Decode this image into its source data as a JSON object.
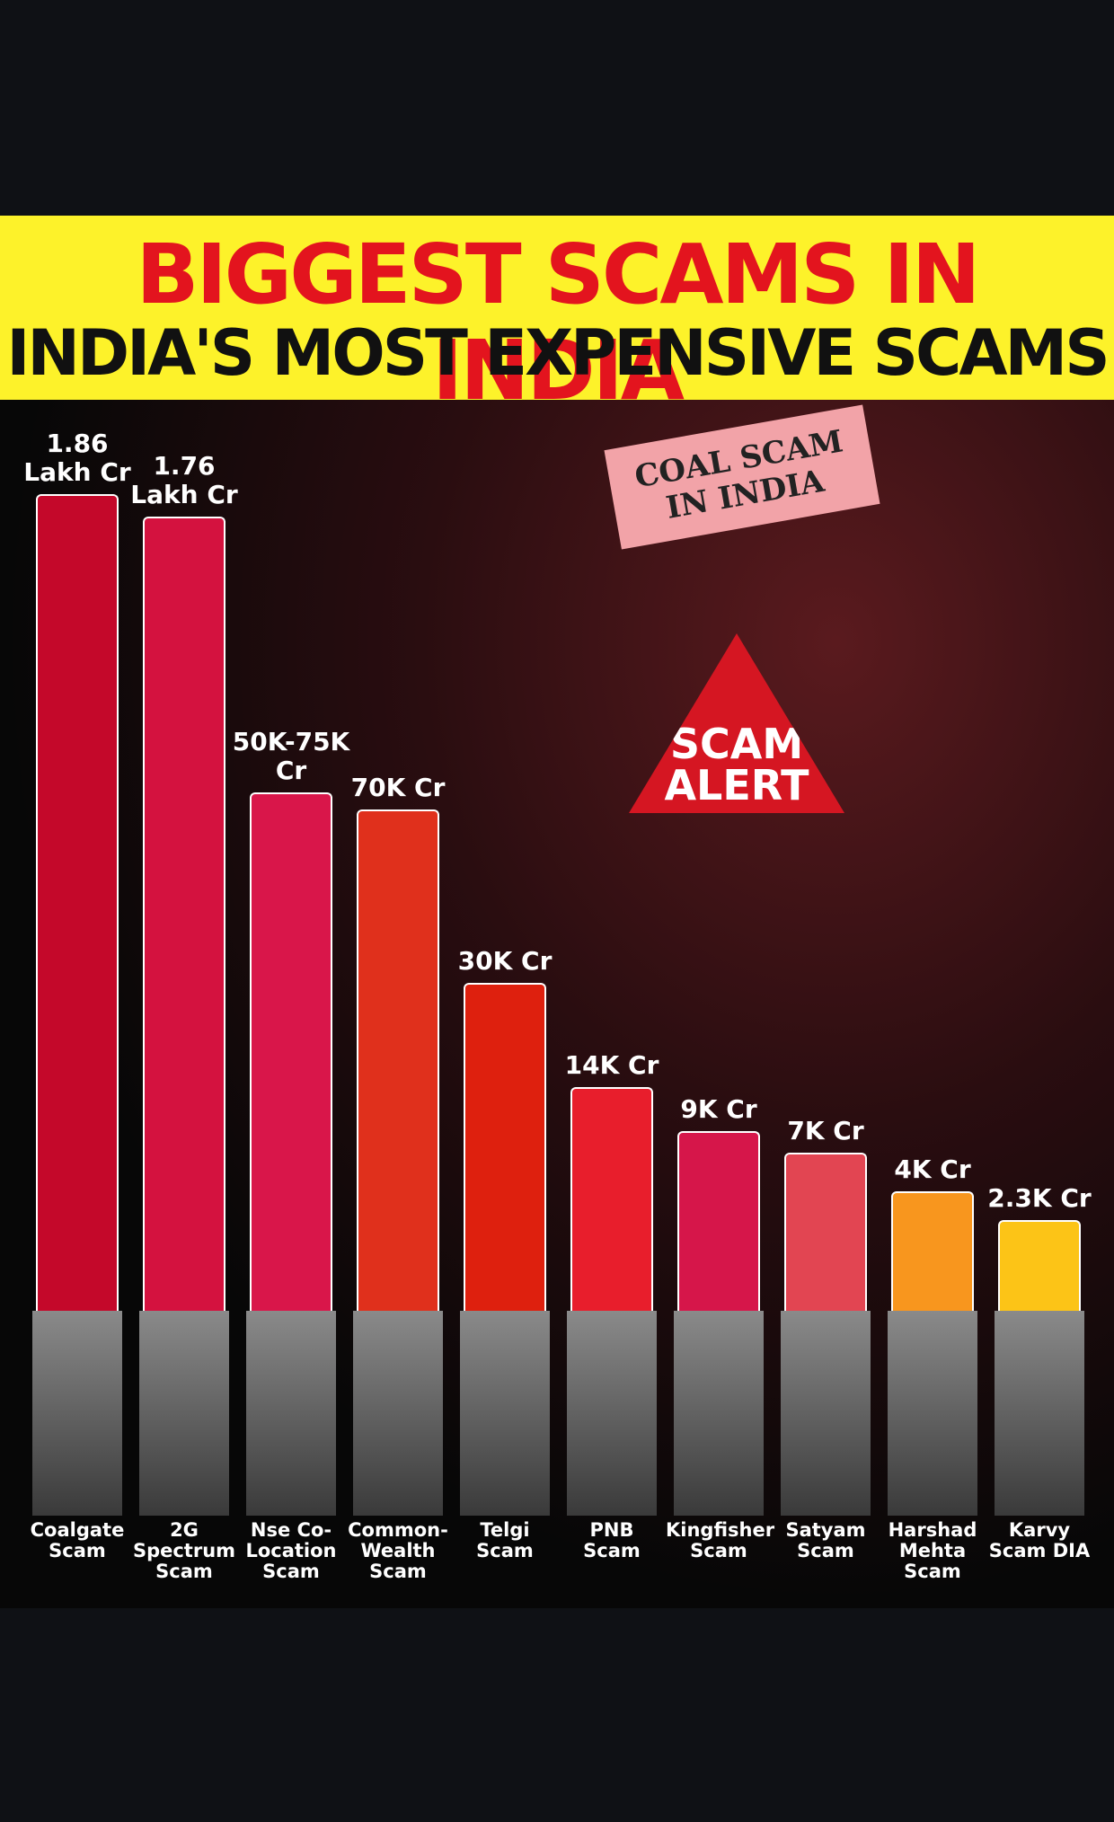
{
  "chart_data": {
    "type": "bar",
    "title": "BIGGEST SCAMS IN INDIA",
    "subtitle": "INDIA'S MOST EXPENSIVE SCAMS",
    "annotations": [
      "COAL SCAM IN INDIA",
      "SCAM ALERT"
    ],
    "categories": [
      "Coalgate Scam",
      "2G Spectrum Scam",
      "Nse Co-Location Scam",
      "Common-Wealth Scam",
      "Telgi Scam",
      "PNB Scam",
      "Kingfisher Scam",
      "Satyam Scam",
      "Harshad Mehta Scam",
      "Karvy Scam DIA"
    ],
    "values": [
      186000,
      176000,
      75000,
      70000,
      30000,
      14000,
      9000,
      7000,
      4000,
      2300
    ],
    "value_labels": [
      "1.86 Lakh Cr",
      "1.76 Lakh Cr",
      "50K-75K Cr",
      "70K Cr",
      "30K Cr",
      "14K Cr",
      "9K Cr",
      "7K Cr",
      "4K Cr",
      "2.3K Cr"
    ],
    "colors": [
      "#c4082a",
      "#d4123f",
      "#d9164a",
      "#e0301c",
      "#de200e",
      "#e81e2c",
      "#d6164a",
      "#e24552",
      "#f8961e",
      "#fcc417"
    ]
  }
}
